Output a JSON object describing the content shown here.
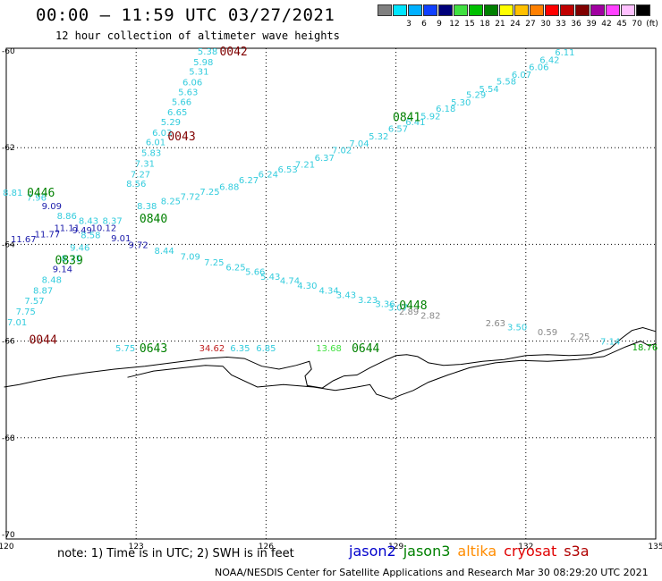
{
  "title": "00:00 – 11:59 UTC 03/27/2021",
  "subtitle": "12 hour collection of altimeter wave heights",
  "legend": {
    "swatches": [
      {
        "color": "#808080",
        "label": ""
      },
      {
        "color": "#00e5ff",
        "label": "3"
      },
      {
        "color": "#00b0ff",
        "label": "6"
      },
      {
        "color": "#1040ff",
        "label": "9"
      },
      {
        "color": "#00007a",
        "label": "12"
      },
      {
        "color": "#40e040",
        "label": "15"
      },
      {
        "color": "#00c000",
        "label": "18"
      },
      {
        "color": "#008000",
        "label": "21"
      },
      {
        "color": "#ffff00",
        "label": "24"
      },
      {
        "color": "#ffc000",
        "label": "27"
      },
      {
        "color": "#ff8000",
        "label": "30"
      },
      {
        "color": "#ff0000",
        "label": "33"
      },
      {
        "color": "#c00000",
        "label": "36"
      },
      {
        "color": "#800000",
        "label": "39"
      },
      {
        "color": "#a000a0",
        "label": "42"
      },
      {
        "color": "#ff40ff",
        "label": "45"
      },
      {
        "color": "#ffc0ff",
        "label": "70"
      },
      {
        "color": "#000000",
        "label": "(ft)"
      }
    ]
  },
  "axes": {
    "lon_ticks": [
      "120",
      "123",
      "126",
      "129",
      "132",
      "135"
    ],
    "lat_ticks": [
      "-60",
      "-62",
      "-64",
      "-66",
      "-68",
      "-70"
    ]
  },
  "points": [
    {
      "t": "5.38",
      "lon": 124.65,
      "lat": -60.0,
      "c": "#33ccdd"
    },
    {
      "t": "5.98",
      "lon": 124.55,
      "lat": -60.22,
      "c": "#33ccdd"
    },
    {
      "t": "5.31",
      "lon": 124.45,
      "lat": -60.42,
      "c": "#33ccdd"
    },
    {
      "t": "6.06",
      "lon": 124.3,
      "lat": -60.64,
      "c": "#33ccdd"
    },
    {
      "t": "5.63",
      "lon": 124.2,
      "lat": -60.84,
      "c": "#33ccdd"
    },
    {
      "t": "5.66",
      "lon": 124.05,
      "lat": -61.04,
      "c": "#33ccdd"
    },
    {
      "t": "6.65",
      "lon": 123.95,
      "lat": -61.26,
      "c": "#33ccdd"
    },
    {
      "t": "5.29",
      "lon": 123.8,
      "lat": -61.46,
      "c": "#33ccdd"
    },
    {
      "t": "6.03",
      "lon": 123.6,
      "lat": -61.68,
      "c": "#33ccdd"
    },
    {
      "t": "6.01",
      "lon": 123.45,
      "lat": -61.88,
      "c": "#33ccdd"
    },
    {
      "t": "5.83",
      "lon": 123.35,
      "lat": -62.1,
      "c": "#33ccdd"
    },
    {
      "t": "7.31",
      "lon": 123.2,
      "lat": -62.32,
      "c": "#33ccdd"
    },
    {
      "t": "7.27",
      "lon": 123.1,
      "lat": -62.54,
      "c": "#33ccdd"
    },
    {
      "t": "8.56",
      "lon": 123.0,
      "lat": -62.74,
      "c": "#33ccdd"
    },
    {
      "t": "6.11",
      "lon": 132.9,
      "lat": -60.02,
      "c": "#33ccdd"
    },
    {
      "t": "6.42",
      "lon": 132.55,
      "lat": -60.18,
      "c": "#33ccdd"
    },
    {
      "t": "6.06",
      "lon": 132.3,
      "lat": -60.32,
      "c": "#33ccdd"
    },
    {
      "t": "6.07",
      "lon": 131.9,
      "lat": -60.48,
      "c": "#33ccdd"
    },
    {
      "t": "5.58",
      "lon": 131.55,
      "lat": -60.62,
      "c": "#33ccdd"
    },
    {
      "t": "5.54",
      "lon": 131.15,
      "lat": -60.78,
      "c": "#33ccdd"
    },
    {
      "t": "5.29",
      "lon": 130.85,
      "lat": -60.9,
      "c": "#33ccdd"
    },
    {
      "t": "5.30",
      "lon": 130.5,
      "lat": -61.05,
      "c": "#33ccdd"
    },
    {
      "t": "6.18",
      "lon": 130.15,
      "lat": -61.18,
      "c": "#33ccdd"
    },
    {
      "t": "5.92",
      "lon": 129.8,
      "lat": -61.34,
      "c": "#33ccdd"
    },
    {
      "t": "6.41",
      "lon": 129.45,
      "lat": -61.46,
      "c": "#33ccdd"
    },
    {
      "t": "6.57",
      "lon": 129.05,
      "lat": -61.6,
      "c": "#33ccdd"
    },
    {
      "t": "5.32",
      "lon": 128.6,
      "lat": -61.76,
      "c": "#33ccdd"
    },
    {
      "t": "7.04",
      "lon": 128.15,
      "lat": -61.9,
      "c": "#33ccdd"
    },
    {
      "t": "7.02",
      "lon": 127.75,
      "lat": -62.04,
      "c": "#33ccdd"
    },
    {
      "t": "6.37",
      "lon": 127.35,
      "lat": -62.2,
      "c": "#33ccdd"
    },
    {
      "t": "7.21",
      "lon": 126.9,
      "lat": -62.34,
      "c": "#33ccdd"
    },
    {
      "t": "6.53",
      "lon": 126.5,
      "lat": -62.44,
      "c": "#33ccdd"
    },
    {
      "t": "6.24",
      "lon": 126.05,
      "lat": -62.54,
      "c": "#33ccdd"
    },
    {
      "t": "6.27",
      "lon": 125.6,
      "lat": -62.66,
      "c": "#33ccdd"
    },
    {
      "t": "6.88",
      "lon": 125.15,
      "lat": -62.8,
      "c": "#33ccdd"
    },
    {
      "t": "7.25",
      "lon": 124.7,
      "lat": -62.9,
      "c": "#33ccdd"
    },
    {
      "t": "7.72",
      "lon": 124.25,
      "lat": -63.0,
      "c": "#33ccdd"
    },
    {
      "t": "8.25",
      "lon": 123.8,
      "lat": -63.1,
      "c": "#33ccdd"
    },
    {
      "t": "8.38",
      "lon": 123.25,
      "lat": -63.2,
      "c": "#33ccdd"
    },
    {
      "t": "8.81",
      "lon": 120.15,
      "lat": -62.92,
      "c": "#33ccdd"
    },
    {
      "t": "7.96",
      "lon": 120.7,
      "lat": -63.02,
      "c": "#33ccdd"
    },
    {
      "t": "9.09",
      "lon": 121.05,
      "lat": -63.2,
      "c": "#1a1aaa"
    },
    {
      "t": "8.86",
      "lon": 121.4,
      "lat": -63.4,
      "c": "#33ccdd"
    },
    {
      "t": "8.43",
      "lon": 121.9,
      "lat": -63.5,
      "c": "#33ccdd"
    },
    {
      "t": "8.37",
      "lon": 122.45,
      "lat": -63.5,
      "c": "#33ccdd"
    },
    {
      "t": "9.49",
      "lon": 121.75,
      "lat": -63.7,
      "c": "#1a1aaa"
    },
    {
      "t": "10.12",
      "lon": 122.25,
      "lat": -63.65,
      "c": "#1a1aaa"
    },
    {
      "t": "9.01",
      "lon": 122.65,
      "lat": -63.86,
      "c": "#1a1aaa"
    },
    {
      "t": "9.72",
      "lon": 123.05,
      "lat": -64.0,
      "c": "#1a1aaa"
    },
    {
      "t": "8.44",
      "lon": 123.65,
      "lat": -64.12,
      "c": "#33ccdd"
    },
    {
      "t": "7.09",
      "lon": 124.25,
      "lat": -64.24,
      "c": "#33ccdd"
    },
    {
      "t": "7.25",
      "lon": 124.8,
      "lat": -64.36,
      "c": "#33ccdd"
    },
    {
      "t": "6.25",
      "lon": 125.3,
      "lat": -64.46,
      "c": "#33ccdd"
    },
    {
      "t": "5.66",
      "lon": 125.75,
      "lat": -64.56,
      "c": "#33ccdd"
    },
    {
      "t": "5.43",
      "lon": 126.1,
      "lat": -64.66,
      "c": "#33ccdd"
    },
    {
      "t": "4.74",
      "lon": 126.55,
      "lat": -64.74,
      "c": "#33ccdd"
    },
    {
      "t": "4.30",
      "lon": 126.95,
      "lat": -64.84,
      "c": "#33ccdd"
    },
    {
      "t": "4.34",
      "lon": 127.45,
      "lat": -64.94,
      "c": "#33ccdd"
    },
    {
      "t": "3.43",
      "lon": 127.85,
      "lat": -65.04,
      "c": "#33ccdd"
    },
    {
      "t": "3.23",
      "lon": 128.35,
      "lat": -65.14,
      "c": "#33ccdd"
    },
    {
      "t": "3.36",
      "lon": 128.75,
      "lat": -65.22,
      "c": "#33ccdd"
    },
    {
      "t": "3.07",
      "lon": 129.05,
      "lat": -65.3,
      "c": "#33ccdd"
    },
    {
      "t": "2.89",
      "lon": 129.3,
      "lat": -65.38,
      "c": "#888888"
    },
    {
      "t": "2.82",
      "lon": 129.8,
      "lat": -65.46,
      "c": "#888888"
    },
    {
      "t": "2.63",
      "lon": 131.3,
      "lat": -65.62,
      "c": "#888888"
    },
    {
      "t": "3.50",
      "lon": 131.8,
      "lat": -65.7,
      "c": "#33ccdd"
    },
    {
      "t": "0.59",
      "lon": 132.5,
      "lat": -65.8,
      "c": "#888888"
    },
    {
      "t": "2.25",
      "lon": 133.25,
      "lat": -65.9,
      "c": "#888888"
    },
    {
      "t": "7.14",
      "lon": 133.95,
      "lat": -66.0,
      "c": "#33ccdd"
    },
    {
      "t": "18.76",
      "lon": 134.75,
      "lat": -66.12,
      "c": "#00a000"
    },
    {
      "t": "11.67",
      "lon": 120.4,
      "lat": -63.88,
      "c": "#1a1aaa"
    },
    {
      "t": "11.77",
      "lon": 120.95,
      "lat": -63.78,
      "c": "#1a1aaa"
    },
    {
      "t": "11.11",
      "lon": 121.4,
      "lat": -63.65,
      "c": "#1a1aaa"
    },
    {
      "t": "8.58",
      "lon": 121.95,
      "lat": -63.8,
      "c": "#33ccdd"
    },
    {
      "t": "9.46",
      "lon": 121.7,
      "lat": -64.06,
      "c": "#33ccdd"
    },
    {
      "t": "8.71",
      "lon": 121.5,
      "lat": -64.28,
      "c": "#33ccdd"
    },
    {
      "t": "9.14",
      "lon": 121.3,
      "lat": -64.5,
      "c": "#1a1aaa"
    },
    {
      "t": "8.48",
      "lon": 121.05,
      "lat": -64.72,
      "c": "#33ccdd"
    },
    {
      "t": "8.87",
      "lon": 120.85,
      "lat": -64.94,
      "c": "#33ccdd"
    },
    {
      "t": "7.57",
      "lon": 120.65,
      "lat": -65.16,
      "c": "#33ccdd"
    },
    {
      "t": "7.75",
      "lon": 120.45,
      "lat": -65.38,
      "c": "#33ccdd"
    },
    {
      "t": "7.01",
      "lon": 120.25,
      "lat": -65.6,
      "c": "#33ccdd"
    },
    {
      "t": "5.75",
      "lon": 122.75,
      "lat": -66.14,
      "c": "#33ccdd"
    },
    {
      "t": "34.62",
      "lon": 124.75,
      "lat": -66.14,
      "c": "#c02020"
    },
    {
      "t": "6.35",
      "lon": 125.4,
      "lat": -66.14,
      "c": "#33ccdd"
    },
    {
      "t": "6.85",
      "lon": 126.0,
      "lat": -66.14,
      "c": "#33ccdd"
    },
    {
      "t": "13.68",
      "lon": 127.45,
      "lat": -66.14,
      "c": "#40e040"
    }
  ],
  "passes": [
    {
      "t": "0042",
      "lon": 125.25,
      "lat": -60.0,
      "c": "#800000"
    },
    {
      "t": "0043",
      "lon": 124.05,
      "lat": -61.76,
      "c": "#800000"
    },
    {
      "t": "0841",
      "lon": 129.25,
      "lat": -61.36,
      "c": "#008000"
    },
    {
      "t": "0446",
      "lon": 120.8,
      "lat": -62.92,
      "c": "#008000"
    },
    {
      "t": "0840",
      "lon": 123.4,
      "lat": -63.46,
      "c": "#008000"
    },
    {
      "t": "0839",
      "lon": 121.45,
      "lat": -64.32,
      "c": "#008000"
    },
    {
      "t": "0448",
      "lon": 129.4,
      "lat": -65.25,
      "c": "#008000"
    },
    {
      "t": "0044",
      "lon": 120.85,
      "lat": -65.96,
      "c": "#800000"
    },
    {
      "t": "0643",
      "lon": 123.4,
      "lat": -66.14,
      "c": "#008000"
    },
    {
      "t": "0644",
      "lon": 128.3,
      "lat": -66.14,
      "c": "#008000"
    }
  ],
  "coastline": [
    [
      119.95,
      -66.95
    ],
    [
      120.3,
      -66.9
    ],
    [
      120.7,
      -66.82
    ],
    [
      121.2,
      -66.74
    ],
    [
      121.8,
      -66.66
    ],
    [
      122.5,
      -66.58
    ],
    [
      123.2,
      -66.52
    ],
    [
      123.9,
      -66.44
    ],
    [
      124.6,
      -66.36
    ],
    [
      125.1,
      -66.33
    ],
    [
      125.5,
      -66.36
    ],
    [
      125.9,
      -66.52
    ],
    [
      126.3,
      -66.58
    ],
    [
      126.7,
      -66.5
    ],
    [
      127.0,
      -66.42
    ],
    [
      127.05,
      -66.58
    ],
    [
      126.9,
      -66.72
    ],
    [
      126.95,
      -66.92
    ],
    [
      127.3,
      -66.97
    ],
    [
      127.55,
      -66.82
    ],
    [
      127.8,
      -66.72
    ],
    [
      128.1,
      -66.7
    ],
    [
      128.4,
      -66.55
    ],
    [
      128.75,
      -66.4
    ],
    [
      129.0,
      -66.3
    ],
    [
      129.25,
      -66.28
    ],
    [
      129.5,
      -66.32
    ],
    [
      129.75,
      -66.45
    ],
    [
      130.1,
      -66.5
    ],
    [
      130.5,
      -66.48
    ],
    [
      131.0,
      -66.42
    ],
    [
      131.5,
      -66.38
    ],
    [
      132.0,
      -66.3
    ],
    [
      132.5,
      -66.28
    ],
    [
      133.0,
      -66.3
    ],
    [
      133.5,
      -66.28
    ],
    [
      133.95,
      -66.15
    ],
    [
      134.2,
      -65.95
    ],
    [
      134.45,
      -65.78
    ],
    [
      134.7,
      -65.72
    ],
    [
      135.0,
      -65.8
    ]
  ],
  "ice_edge": [
    [
      122.8,
      -66.75
    ],
    [
      123.4,
      -66.62
    ],
    [
      124.0,
      -66.56
    ],
    [
      124.6,
      -66.5
    ],
    [
      125.0,
      -66.52
    ],
    [
      125.2,
      -66.7
    ],
    [
      125.8,
      -66.95
    ],
    [
      126.4,
      -66.9
    ],
    [
      127.1,
      -66.95
    ],
    [
      127.6,
      -67.02
    ],
    [
      128.1,
      -66.95
    ],
    [
      128.4,
      -66.9
    ],
    [
      128.55,
      -67.1
    ],
    [
      128.9,
      -67.2
    ],
    [
      129.1,
      -67.12
    ],
    [
      129.4,
      -67.02
    ],
    [
      129.75,
      -66.85
    ],
    [
      130.2,
      -66.7
    ],
    [
      130.7,
      -66.55
    ],
    [
      131.3,
      -66.45
    ],
    [
      131.9,
      -66.4
    ],
    [
      132.5,
      -66.42
    ],
    [
      133.2,
      -66.38
    ],
    [
      133.8,
      -66.32
    ],
    [
      134.3,
      -66.12
    ],
    [
      134.65,
      -66.0
    ],
    [
      134.85,
      -66.1
    ],
    [
      135.0,
      -66.05
    ]
  ],
  "note": "note: 1) Time is in UTC; 2) SWH is in feet",
  "satellites": [
    {
      "name": "jason2",
      "color": "#0000cc"
    },
    {
      "name": "jason3",
      "color": "#008000"
    },
    {
      "name": "altika",
      "color": "#ff8c00"
    },
    {
      "name": "cryosat",
      "color": "#e00000"
    },
    {
      "name": "s3a",
      "color": "#b00000"
    }
  ],
  "credit": "NOAA/NESDIS Center for Satellite Applications and Research    Mar 30 08:29:20 UTC 2021"
}
